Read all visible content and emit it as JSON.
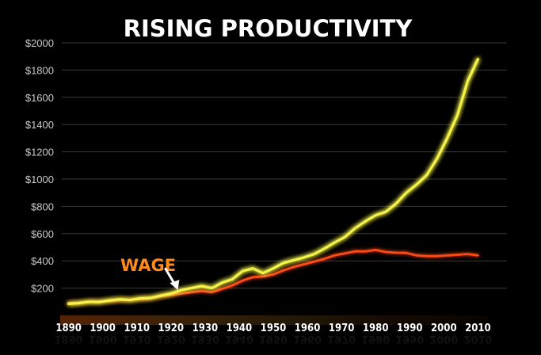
{
  "chart_data": {
    "type": "line",
    "title": "RISING PRODUCTIVITY",
    "xlabel": "",
    "ylabel": "",
    "xlim": [
      1888,
      2012
    ],
    "ylim": [
      0,
      2000
    ],
    "x_ticks": [
      "1890",
      "1900",
      "1910",
      "1920",
      "1930",
      "1940",
      "1950",
      "1960",
      "1970",
      "1980",
      "1990",
      "2000",
      "2010"
    ],
    "y_ticks": [
      "$200",
      "$400",
      "$600",
      "$800",
      "$1000",
      "$1200",
      "$1400",
      "$1600",
      "$1800",
      "$2000"
    ],
    "grid": "horizontal",
    "legend": "none",
    "annotation": {
      "text": "WAGE",
      "arrow_to_x": 1922,
      "arrow_to_y": 185
    },
    "series": [
      {
        "color": "#f3f24a",
        "x": [
          1890,
          1893,
          1896,
          1899,
          1902,
          1905,
          1908,
          1911,
          1914,
          1917,
          1920,
          1923,
          1926,
          1929,
          1932,
          1935,
          1938,
          1941,
          1944,
          1947,
          1950,
          1953,
          1956,
          1959,
          1962,
          1965,
          1968,
          1971,
          1974,
          1977,
          1980,
          1983,
          1986,
          1989,
          1992,
          1995,
          1998,
          2001,
          2004,
          2007,
          2010
        ],
        "values": [
          85,
          90,
          100,
          98,
          110,
          118,
          112,
          125,
          128,
          145,
          160,
          185,
          200,
          215,
          200,
          240,
          265,
          325,
          345,
          310,
          345,
          385,
          405,
          425,
          450,
          490,
          535,
          575,
          640,
          690,
          735,
          760,
          820,
          900,
          960,
          1030,
          1150,
          1300,
          1470,
          1720,
          1880
        ]
      },
      {
        "color": "#ff4a18",
        "x": [
          1890,
          1893,
          1896,
          1899,
          1902,
          1905,
          1908,
          1911,
          1914,
          1917,
          1920,
          1923,
          1926,
          1929,
          1932,
          1935,
          1938,
          1941,
          1944,
          1947,
          1950,
          1953,
          1956,
          1959,
          1962,
          1965,
          1968,
          1971,
          1974,
          1977,
          1980,
          1983,
          1986,
          1989,
          1992,
          1995,
          1998,
          2001,
          2004,
          2007,
          2010
        ],
        "values": [
          90,
          92,
          100,
          100,
          105,
          112,
          115,
          120,
          125,
          140,
          150,
          160,
          170,
          178,
          170,
          195,
          220,
          255,
          280,
          285,
          300,
          330,
          355,
          375,
          395,
          415,
          440,
          455,
          470,
          470,
          480,
          465,
          460,
          458,
          440,
          435,
          435,
          440,
          445,
          450,
          440
        ]
      }
    ]
  }
}
